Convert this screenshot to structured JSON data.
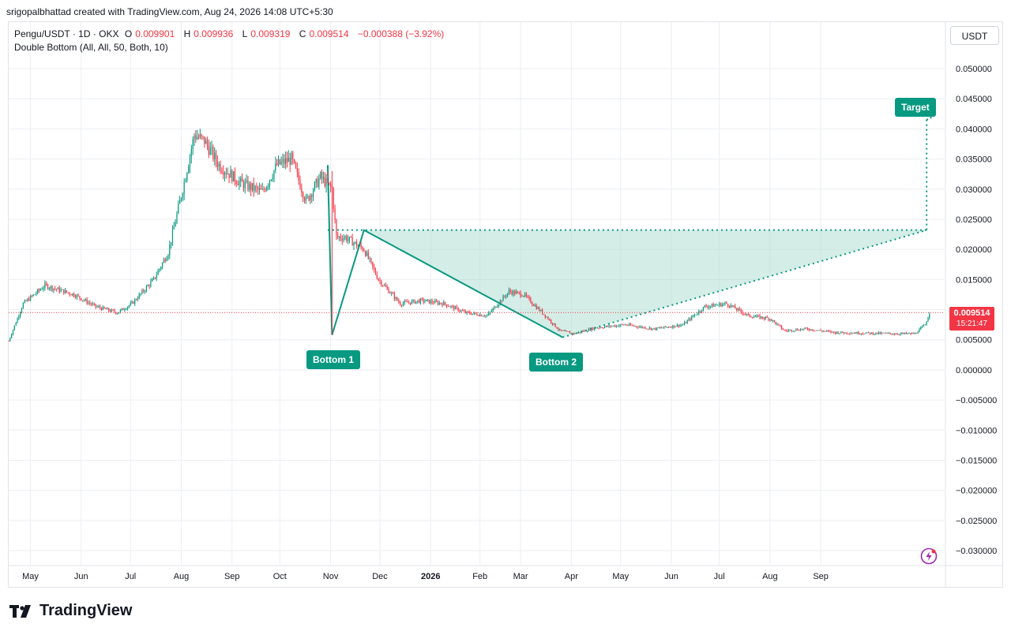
{
  "header": {
    "attribution": "srigopalbhattad created with TradingView.com, Aug 24, 2026 14:08 UTC+5:30"
  },
  "legend": {
    "symbol": "Pengu/USDT · 1D · OKX",
    "open_label": "O",
    "open": "0.009901",
    "high_label": "H",
    "high": "0.009936",
    "low_label": "L",
    "low": "0.009319",
    "close_label": "C",
    "close": "0.009514",
    "change": "−0.000388 (−3.92%)",
    "indicator": "Double Bottom (All, All, 50, Both, 10)"
  },
  "currency_button": "USDT",
  "price_tag": {
    "price": "0.009514",
    "countdown": "15:21:47"
  },
  "pattern_labels": {
    "bottom1": "Bottom 1",
    "bottom2": "Bottom 2",
    "target": "Target"
  },
  "branding": {
    "logo_text": "TradingView"
  },
  "colors": {
    "up": "#089981",
    "down": "#f23645",
    "pattern_fill": "#b2dfd3",
    "grid": "#eceef2"
  },
  "chart_data": {
    "type": "candlestick",
    "symbol": "Pengu/USDT",
    "ylim": [
      -0.03,
      0.05
    ],
    "y_ticks": [
      "0.050000",
      "0.045000",
      "0.040000",
      "0.035000",
      "0.030000",
      "0.025000",
      "0.020000",
      "0.015000",
      "0.010000",
      "0.005000",
      "0.000000",
      "−0.005000",
      "−0.010000",
      "−0.015000",
      "−0.020000",
      "−0.025000",
      "−0.030000"
    ],
    "x_ticks": [
      "May",
      "Jun",
      "Jul",
      "Aug",
      "Sep",
      "Oct",
      "Nov",
      "Dec",
      "2026",
      "Feb",
      "Mar",
      "Apr",
      "May",
      "Jun",
      "Jul",
      "Aug",
      "Sep"
    ],
    "grid": true,
    "price_path": [
      {
        "t": 0,
        "p": 0.0048
      },
      {
        "t": 10,
        "p": 0.011
      },
      {
        "t": 25,
        "p": 0.014
      },
      {
        "t": 45,
        "p": 0.0125
      },
      {
        "t": 60,
        "p": 0.0105
      },
      {
        "t": 75,
        "p": 0.0095
      },
      {
        "t": 85,
        "p": 0.011
      },
      {
        "t": 100,
        "p": 0.015
      },
      {
        "t": 110,
        "p": 0.0195
      },
      {
        "t": 120,
        "p": 0.03
      },
      {
        "t": 128,
        "p": 0.039
      },
      {
        "t": 135,
        "p": 0.038
      },
      {
        "t": 145,
        "p": 0.034
      },
      {
        "t": 160,
        "p": 0.031
      },
      {
        "t": 175,
        "p": 0.0295
      },
      {
        "t": 185,
        "p": 0.034
      },
      {
        "t": 195,
        "p": 0.035
      },
      {
        "t": 205,
        "p": 0.028
      },
      {
        "t": 215,
        "p": 0.032
      },
      {
        "t": 223,
        "p": 0.03
      },
      {
        "t": 226,
        "p": 0.022
      },
      {
        "t": 232,
        "p": 0.022
      },
      {
        "t": 245,
        "p": 0.02
      },
      {
        "t": 255,
        "p": 0.015
      },
      {
        "t": 270,
        "p": 0.011
      },
      {
        "t": 285,
        "p": 0.0115
      },
      {
        "t": 300,
        "p": 0.011
      },
      {
        "t": 315,
        "p": 0.0095
      },
      {
        "t": 330,
        "p": 0.009
      },
      {
        "t": 345,
        "p": 0.013
      },
      {
        "t": 355,
        "p": 0.0125
      },
      {
        "t": 370,
        "p": 0.009
      },
      {
        "t": 380,
        "p": 0.0065
      },
      {
        "t": 390,
        "p": 0.006
      },
      {
        "t": 405,
        "p": 0.007
      },
      {
        "t": 425,
        "p": 0.0075
      },
      {
        "t": 445,
        "p": 0.0068
      },
      {
        "t": 465,
        "p": 0.0075
      },
      {
        "t": 480,
        "p": 0.0105
      },
      {
        "t": 495,
        "p": 0.011
      },
      {
        "t": 510,
        "p": 0.009
      },
      {
        "t": 525,
        "p": 0.0085
      },
      {
        "t": 535,
        "p": 0.0065
      },
      {
        "t": 550,
        "p": 0.0068
      },
      {
        "t": 570,
        "p": 0.0062
      },
      {
        "t": 590,
        "p": 0.0061
      },
      {
        "t": 610,
        "p": 0.006
      },
      {
        "t": 625,
        "p": 0.006
      },
      {
        "t": 632,
        "p": 0.0075
      },
      {
        "t": 635,
        "p": 0.0095
      }
    ],
    "last_price": 0.009514,
    "pattern": {
      "name": "Double Bottom",
      "bottom1": {
        "t": 223,
        "p": 0.0058
      },
      "neckline": {
        "t": 245,
        "p": 0.0232
      },
      "start": {
        "t": 220,
        "p": 0.034
      },
      "bottom2": {
        "t": 382,
        "p": 0.0054
      },
      "breakout": {
        "t": 633,
        "p": 0.0232
      },
      "target": {
        "t": 633,
        "p": 0.0415
      }
    }
  }
}
